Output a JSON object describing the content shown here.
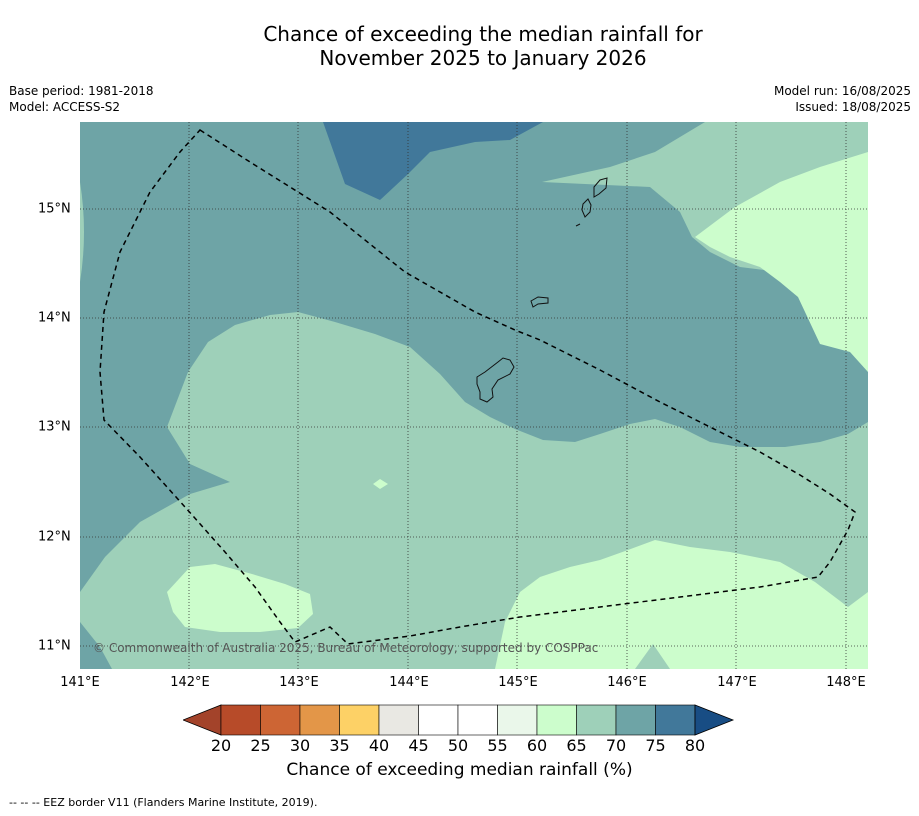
{
  "header": {
    "title_line1": "Chance of exceeding the median rainfall for",
    "title_line2": "November 2025 to January 2026",
    "base_period": "Base period: 1981-2018",
    "model": "Model: ACCESS-S2",
    "model_run": "Model run: 16/08/2025",
    "issued": "Issued: 18/08/2025"
  },
  "map": {
    "copyright": "© Commonwealth of Australia 2025, Bureau of Meteorology, supported by COSPPac",
    "lon_labels": [
      "141°E",
      "142°E",
      "143°E",
      "144°E",
      "145°E",
      "146°E",
      "147°E",
      "148°E"
    ],
    "lat_labels": [
      "15°N",
      "14°N",
      "13°N",
      "12°N",
      "11°N"
    ],
    "colors": {
      "band_65_70": "#9ed0b9",
      "band_70_75": "#6ea4a6",
      "band_75_80": "#41789a",
      "band_60_65": "#ccfdcc",
      "gridline": "#333333",
      "eez_border": "#000000"
    }
  },
  "colorbar": {
    "label": "Chance of exceeding median rainfall (%)",
    "ticks": [
      "20",
      "25",
      "30",
      "35",
      "40",
      "45",
      "50",
      "55",
      "60",
      "65",
      "70",
      "75",
      "80"
    ],
    "colors": [
      "#a3432a",
      "#b74b29",
      "#cd6534",
      "#e39648",
      "#fdd166",
      "#e9e8e3",
      "#ffffff",
      "#ffffff",
      "#eaf7ea",
      "#ccfdcc",
      "#9ed0b9",
      "#6ea4a6",
      "#41789a",
      "#184d84"
    ]
  },
  "footnote": "--  --  -- EEZ border V11 (Flanders Marine Institute, 2019)."
}
